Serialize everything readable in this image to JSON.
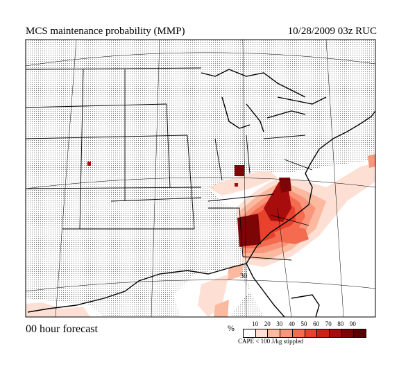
{
  "header": {
    "title": "MCS maintenance probability (MMP)",
    "timestamp": "10/28/2009  03z  RUC"
  },
  "footer": {
    "forecast_label": "00 hour forecast",
    "percent_symbol": "%",
    "stipple_note": "CAPE < 100 J/kg stippled"
  },
  "legend": {
    "ticks": [
      "10",
      "20",
      "30",
      "40",
      "50",
      "60",
      "70",
      "80",
      "90"
    ],
    "colors": [
      "#ffffff",
      "#fde0d3",
      "#fbb9a0",
      "#f8957a",
      "#f46b50",
      "#e8412e",
      "#cc2018",
      "#a80d0d",
      "#7e0505",
      "#5a0000"
    ]
  },
  "map": {
    "stipple_color": "#7a7a7a",
    "land_color": "#d8d8d8",
    "isotherm_label": "30"
  }
}
